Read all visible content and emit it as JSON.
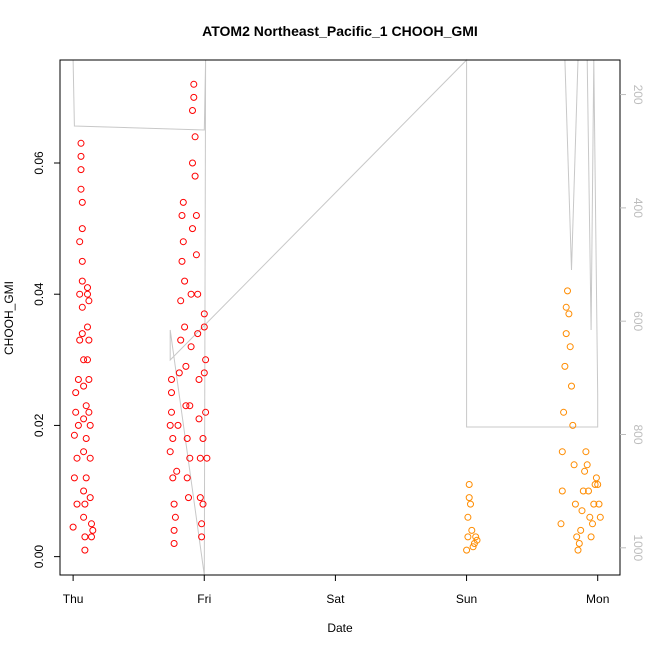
{
  "chart_data": {
    "type": "scatter",
    "title": "ATOM2 Northeast_Pacific_1 CHOOH_GMI",
    "xlabel": "Date",
    "ylabel": "CHOOH_GMI",
    "x_ticks": [
      "Thu",
      "Fri",
      "Sat",
      "Sun",
      "Mon"
    ],
    "x_range_days": [
      -0.1,
      4.17
    ],
    "ylim": [
      -0.0028,
      0.0757
    ],
    "y_ticks": [
      0.0,
      0.02,
      0.04,
      0.06
    ],
    "y_tick_labels": [
      "0.00",
      "0.02",
      "0.04",
      "0.06"
    ],
    "y2_range": [
      139,
      1048
    ],
    "y2_ticks": [
      200,
      400,
      600,
      800,
      1000
    ],
    "y2_label_color": "#bdbdbd",
    "series": [
      {
        "color": "#ff0000",
        "marker": "open-circle",
        "points": [
          [
            0.0,
            0.0045
          ],
          [
            0.01,
            0.012
          ],
          [
            0.01,
            0.0185
          ],
          [
            0.02,
            0.022
          ],
          [
            0.02,
            0.025
          ],
          [
            0.03,
            0.015
          ],
          [
            0.03,
            0.008
          ],
          [
            0.04,
            0.02
          ],
          [
            0.04,
            0.027
          ],
          [
            0.05,
            0.033
          ],
          [
            0.05,
            0.04
          ],
          [
            0.05,
            0.048
          ],
          [
            0.06,
            0.056
          ],
          [
            0.06,
            0.063
          ],
          [
            0.06,
            0.061
          ],
          [
            0.06,
            0.059
          ],
          [
            0.07,
            0.054
          ],
          [
            0.07,
            0.05
          ],
          [
            0.07,
            0.045
          ],
          [
            0.07,
            0.042
          ],
          [
            0.07,
            0.038
          ],
          [
            0.07,
            0.034
          ],
          [
            0.08,
            0.03
          ],
          [
            0.08,
            0.026
          ],
          [
            0.08,
            0.021
          ],
          [
            0.08,
            0.016
          ],
          [
            0.08,
            0.01
          ],
          [
            0.08,
            0.006
          ],
          [
            0.09,
            0.001
          ],
          [
            0.09,
            0.003
          ],
          [
            0.09,
            0.008
          ],
          [
            0.1,
            0.012
          ],
          [
            0.1,
            0.018
          ],
          [
            0.1,
            0.023
          ],
          [
            0.11,
            0.03
          ],
          [
            0.11,
            0.035
          ],
          [
            0.11,
            0.04
          ],
          [
            0.11,
            0.041
          ],
          [
            0.12,
            0.039
          ],
          [
            0.12,
            0.033
          ],
          [
            0.12,
            0.027
          ],
          [
            0.12,
            0.022
          ],
          [
            0.13,
            0.02
          ],
          [
            0.13,
            0.015
          ],
          [
            0.13,
            0.009
          ],
          [
            0.14,
            0.005
          ],
          [
            0.14,
            0.003
          ],
          [
            0.15,
            0.004
          ],
          [
            0.74,
            0.016
          ],
          [
            0.74,
            0.02
          ],
          [
            0.75,
            0.025
          ],
          [
            0.75,
            0.027
          ],
          [
            0.75,
            0.022
          ],
          [
            0.76,
            0.018
          ],
          [
            0.76,
            0.012
          ],
          [
            0.77,
            0.008
          ],
          [
            0.77,
            0.004
          ],
          [
            0.77,
            0.002
          ],
          [
            0.78,
            0.006
          ],
          [
            0.79,
            0.013
          ],
          [
            0.8,
            0.02
          ],
          [
            0.81,
            0.028
          ],
          [
            0.82,
            0.033
          ],
          [
            0.82,
            0.039
          ],
          [
            0.83,
            0.045
          ],
          [
            0.83,
            0.052
          ],
          [
            0.84,
            0.054
          ],
          [
            0.84,
            0.048
          ],
          [
            0.85,
            0.042
          ],
          [
            0.85,
            0.035
          ],
          [
            0.86,
            0.029
          ],
          [
            0.86,
            0.023
          ],
          [
            0.87,
            0.018
          ],
          [
            0.87,
            0.012
          ],
          [
            0.88,
            0.009
          ],
          [
            0.89,
            0.015
          ],
          [
            0.89,
            0.023
          ],
          [
            0.9,
            0.032
          ],
          [
            0.9,
            0.04
          ],
          [
            0.91,
            0.05
          ],
          [
            0.91,
            0.06
          ],
          [
            0.91,
            0.068
          ],
          [
            0.92,
            0.072
          ],
          [
            0.92,
            0.07
          ],
          [
            0.93,
            0.064
          ],
          [
            0.93,
            0.058
          ],
          [
            0.94,
            0.052
          ],
          [
            0.94,
            0.046
          ],
          [
            0.95,
            0.04
          ],
          [
            0.95,
            0.034
          ],
          [
            0.96,
            0.027
          ],
          [
            0.96,
            0.021
          ],
          [
            0.97,
            0.015
          ],
          [
            0.97,
            0.009
          ],
          [
            0.98,
            0.005
          ],
          [
            0.98,
            0.003
          ],
          [
            0.99,
            0.008
          ],
          [
            0.99,
            0.018
          ],
          [
            1.0,
            0.028
          ],
          [
            1.0,
            0.035
          ],
          [
            1.0,
            0.037
          ],
          [
            1.01,
            0.03
          ],
          [
            1.01,
            0.022
          ],
          [
            1.02,
            0.015
          ]
        ]
      },
      {
        "color": "#ff8c00",
        "marker": "open-circle",
        "points": [
          [
            3.0,
            0.001
          ],
          [
            3.01,
            0.003
          ],
          [
            3.01,
            0.006
          ],
          [
            3.02,
            0.009
          ],
          [
            3.02,
            0.011
          ],
          [
            3.03,
            0.008
          ],
          [
            3.04,
            0.004
          ],
          [
            3.05,
            0.0015
          ],
          [
            3.06,
            0.002
          ],
          [
            3.07,
            0.003
          ],
          [
            3.08,
            0.0025
          ],
          [
            3.72,
            0.005
          ],
          [
            3.73,
            0.01
          ],
          [
            3.73,
            0.016
          ],
          [
            3.74,
            0.022
          ],
          [
            3.75,
            0.029
          ],
          [
            3.76,
            0.034
          ],
          [
            3.76,
            0.038
          ],
          [
            3.77,
            0.0405
          ],
          [
            3.78,
            0.037
          ],
          [
            3.79,
            0.032
          ],
          [
            3.8,
            0.026
          ],
          [
            3.81,
            0.02
          ],
          [
            3.82,
            0.014
          ],
          [
            3.83,
            0.008
          ],
          [
            3.84,
            0.003
          ],
          [
            3.85,
            0.001
          ],
          [
            3.86,
            0.002
          ],
          [
            3.87,
            0.004
          ],
          [
            3.88,
            0.007
          ],
          [
            3.89,
            0.01
          ],
          [
            3.9,
            0.013
          ],
          [
            3.91,
            0.016
          ],
          [
            3.92,
            0.014
          ],
          [
            3.93,
            0.01
          ],
          [
            3.94,
            0.006
          ],
          [
            3.95,
            0.003
          ],
          [
            3.96,
            0.005
          ],
          [
            3.97,
            0.008
          ],
          [
            3.98,
            0.011
          ],
          [
            3.99,
            0.012
          ],
          [
            4.0,
            0.011
          ],
          [
            4.01,
            0.008
          ],
          [
            4.02,
            0.006
          ]
        ]
      }
    ]
  }
}
